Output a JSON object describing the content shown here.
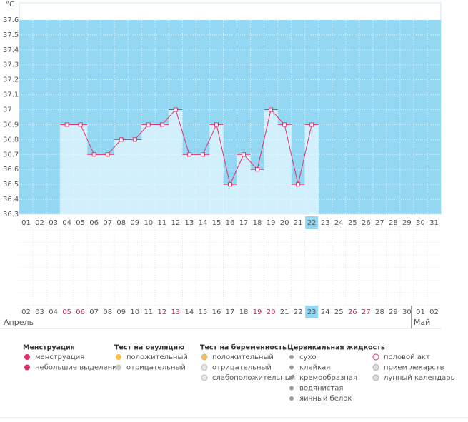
{
  "chart_data": {
    "type": "line",
    "unit": "°C",
    "categories": [
      "01",
      "02",
      "03",
      "04",
      "05",
      "06",
      "07",
      "08",
      "09",
      "10",
      "11",
      "12",
      "13",
      "14",
      "15",
      "16",
      "17",
      "18",
      "19",
      "20",
      "21",
      "22",
      "23",
      "24",
      "25",
      "26",
      "27",
      "28",
      "29",
      "30",
      "31"
    ],
    "values": [
      null,
      null,
      null,
      36.9,
      36.9,
      36.7,
      36.7,
      36.8,
      36.8,
      36.9,
      36.9,
      37.0,
      36.7,
      36.7,
      36.9,
      36.5,
      36.7,
      36.6,
      37.0,
      36.9,
      36.5,
      36.9,
      null,
      null,
      null,
      null,
      null,
      null,
      null,
      null,
      null
    ],
    "highlighted": "22",
    "ylim": [
      36.3,
      37.7
    ],
    "yticks": [
      36.3,
      36.4,
      36.5,
      36.6,
      36.7,
      36.8,
      36.9,
      37,
      37.1,
      37.2,
      37.3,
      37.4,
      37.5,
      37.6
    ],
    "line_color": "#e0306a",
    "bar_color": "#d2effc",
    "band_color": "#94d7f2",
    "grid": true,
    "calendar": {
      "days": [
        {
          "label": "02"
        },
        {
          "label": "03"
        },
        {
          "label": "04"
        },
        {
          "label": "05",
          "weekend": true
        },
        {
          "label": "06",
          "weekend": true
        },
        {
          "label": "07"
        },
        {
          "label": "08"
        },
        {
          "label": "09"
        },
        {
          "label": "10"
        },
        {
          "label": "11"
        },
        {
          "label": "12",
          "weekend": true
        },
        {
          "label": "13",
          "weekend": true
        },
        {
          "label": "14"
        },
        {
          "label": "15"
        },
        {
          "label": "16"
        },
        {
          "label": "17"
        },
        {
          "label": "18"
        },
        {
          "label": "19",
          "weekend": true
        },
        {
          "label": "20",
          "weekend": true
        },
        {
          "label": "21"
        },
        {
          "label": "22"
        },
        {
          "label": "23",
          "today": true
        },
        {
          "label": "24"
        },
        {
          "label": "25"
        },
        {
          "label": "26",
          "weekend": true
        },
        {
          "label": "27",
          "weekend": true
        },
        {
          "label": "28"
        },
        {
          "label": "29"
        },
        {
          "label": "30"
        },
        {
          "label": "01"
        },
        {
          "label": "02"
        }
      ],
      "months": [
        {
          "label": "Апрель",
          "start": 0
        },
        {
          "label": "Май",
          "start": 29
        }
      ]
    }
  },
  "legend": [
    {
      "title": "Менструация",
      "items": [
        "менструация",
        "небольшие выделения"
      ]
    },
    {
      "title": "Тест на овуляцию",
      "items": [
        "положительный",
        "отрицательный"
      ]
    },
    {
      "title": "Тест на беременность",
      "items": [
        "положительный",
        "отрицательный",
        "слабоположительный"
      ]
    },
    {
      "title": "Цервикальная жидкость",
      "items": [
        "сухо",
        "клейкая",
        "кремообразная",
        "водянистая",
        "яичный белок"
      ]
    },
    {
      "items": [
        "половой акт",
        "прием лекарств",
        "лунный календарь"
      ]
    }
  ]
}
